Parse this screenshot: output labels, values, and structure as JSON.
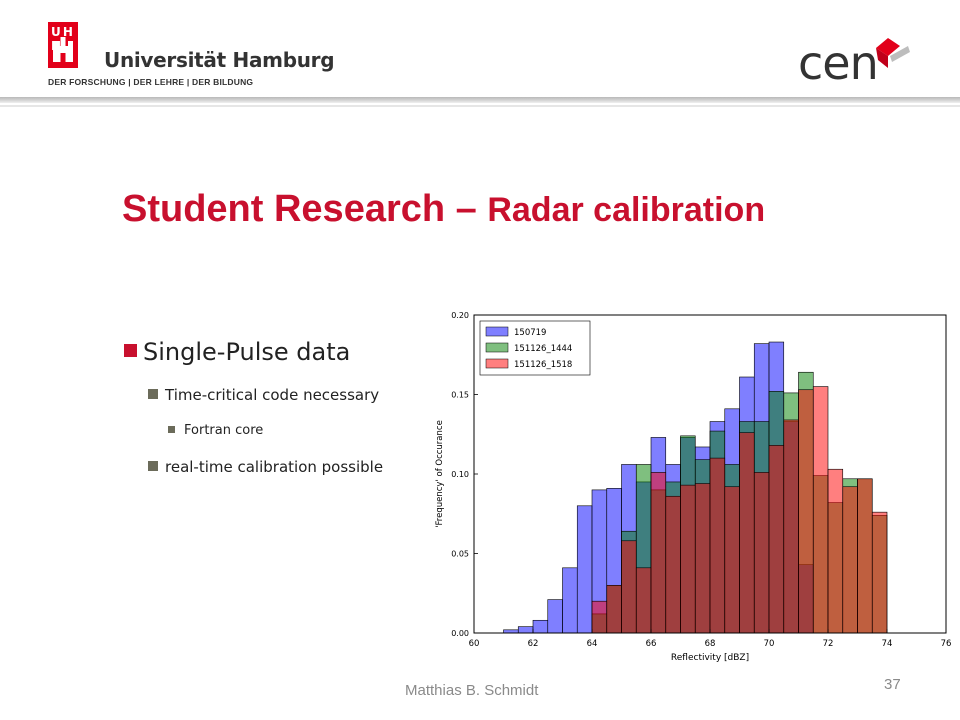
{
  "header": {
    "university_initials": "U H H",
    "university_name": "Universität Hamburg",
    "university_motto": "DER FORSCHUNG | DER LEHRE | DER BILDUNG",
    "cen_logo_text": "cen",
    "colors": {
      "brand_red": "#e2001a",
      "cen_red": "#e2001a"
    }
  },
  "slide": {
    "title_part1": "Student Research – ",
    "title_part2": "Radar calibration",
    "bullets": [
      {
        "level": 1,
        "text": "Single-Pulse  data"
      },
      {
        "level": 2,
        "text": "Time-critical code necessary"
      },
      {
        "level": 3,
        "text": "Fortran core"
      },
      {
        "level": 2,
        "text": "real-time calibration possible"
      }
    ]
  },
  "footer": {
    "author": "Matthias B. Schmidt",
    "page_number": "37"
  },
  "chart_data": {
    "type": "bar",
    "title": "",
    "xlabel": "Reflectivity [dBZ]",
    "ylabel": "'Frequency' of Occurance",
    "xlim": [
      60,
      76
    ],
    "ylim": [
      0,
      0.2
    ],
    "xticks": [
      "60",
      "62",
      "64",
      "66",
      "68",
      "70",
      "72",
      "74",
      "76"
    ],
    "yticks": [
      "0.00",
      "0.05",
      "0.10",
      "0.15",
      "0.20"
    ],
    "bin_width": 0.5,
    "legend_position": "top-left",
    "series": [
      {
        "name": "150719",
        "color": "#0000ff",
        "x": [
          61.0,
          61.5,
          62.0,
          62.5,
          63.0,
          63.5,
          64.0,
          64.5,
          65.0,
          65.5,
          66.0,
          66.5,
          67.0,
          67.5,
          68.0,
          68.5,
          69.0,
          69.5,
          70.0,
          70.5,
          71.0
        ],
        "values": [
          0.002,
          0.004,
          0.008,
          0.021,
          0.041,
          0.08,
          0.09,
          0.091,
          0.106,
          0.095,
          0.123,
          0.106,
          0.123,
          0.117,
          0.133,
          0.141,
          0.161,
          0.182,
          0.183,
          0.133,
          0.043
        ]
      },
      {
        "name": "151126_1444",
        "color": "#008000",
        "x": [
          64.0,
          64.5,
          65.0,
          65.5,
          66.0,
          66.5,
          67.0,
          67.5,
          68.0,
          68.5,
          69.0,
          69.5,
          70.0,
          70.5,
          71.0,
          71.5,
          72.0,
          72.5,
          73.0,
          73.5
        ],
        "values": [
          0.012,
          0.03,
          0.064,
          0.106,
          0.09,
          0.095,
          0.124,
          0.109,
          0.127,
          0.106,
          0.133,
          0.133,
          0.152,
          0.151,
          0.164,
          0.099,
          0.082,
          0.097,
          0.097,
          0.074
        ]
      },
      {
        "name": "151126_1518",
        "color": "#ff0000",
        "x": [
          64.0,
          64.5,
          65.0,
          65.5,
          66.0,
          66.5,
          67.0,
          67.5,
          68.0,
          68.5,
          69.0,
          69.5,
          70.0,
          70.5,
          71.0,
          71.5,
          72.0,
          72.5,
          73.0,
          73.5
        ],
        "values": [
          0.02,
          0.03,
          0.058,
          0.041,
          0.101,
          0.086,
          0.093,
          0.094,
          0.11,
          0.092,
          0.126,
          0.101,
          0.118,
          0.134,
          0.153,
          0.155,
          0.103,
          0.092,
          0.097,
          0.076
        ]
      }
    ]
  }
}
